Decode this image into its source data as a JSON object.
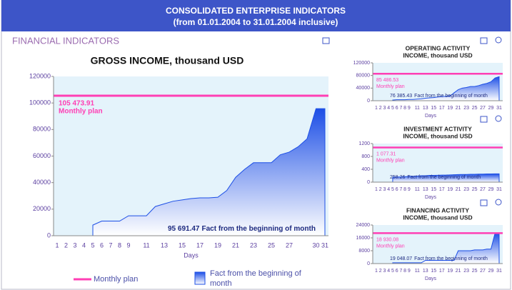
{
  "header": {
    "title": "CONSOLIDATED ENTERPRISE INDICATORS",
    "subtitle": "(from 01.01.2004 to 31.01.2004 inclusive)"
  },
  "section": "FINANCIAL INDICATORS",
  "legend": {
    "plan": "Monthly plan",
    "fact": "Fact from the beginning of month"
  },
  "chart_data": [
    {
      "type": "area",
      "title": [
        "GROSS INCOME, thousand USD"
      ],
      "xlabel": "Days",
      "categories": [
        "1",
        "2",
        "3",
        "4",
        "5",
        "6",
        "7",
        "8",
        "9",
        null,
        "11",
        null,
        "13",
        null,
        "15",
        null,
        "17",
        null,
        "19",
        null,
        "21",
        null,
        "23",
        null,
        "25",
        null,
        "27",
        null,
        null,
        "30",
        "31"
      ],
      "ylim": [
        0,
        120000
      ],
      "yticks": [
        0,
        20000,
        40000,
        60000,
        80000,
        100000,
        120000
      ],
      "grid": false,
      "plan": {
        "name": "Monthly plan",
        "value": 105473.91,
        "value_label": "105 473.91",
        "color": "#ff3fb4"
      },
      "series": [
        {
          "name": "Fact from the beginning of month",
          "color": "#1d4fe6",
          "value_label": "95 691.47",
          "values": [
            null,
            null,
            null,
            null,
            8000,
            11000,
            11000,
            11000,
            15000,
            15000,
            15000,
            22000,
            24000,
            26000,
            27000,
            28000,
            28500,
            28500,
            29000,
            34000,
            44000,
            50000,
            55000,
            55000,
            55000,
            61000,
            63000,
            67000,
            73000,
            95691.47,
            95691.47
          ]
        }
      ]
    },
    {
      "type": "area",
      "title": [
        "OPERATING ACTIVITY",
        "INCOME, thousand USD"
      ],
      "xlabel": "Days",
      "categories": [
        "1",
        "2",
        "3",
        "4",
        "5",
        "6",
        "7",
        "8",
        "9",
        null,
        "11",
        null,
        "13",
        null,
        "15",
        null,
        "17",
        null,
        "19",
        null,
        "21",
        null,
        "23",
        null,
        "25",
        null,
        "27",
        null,
        "29",
        null,
        "31"
      ],
      "ylim": [
        0,
        120000
      ],
      "yticks": [
        0,
        40000,
        80000,
        120000
      ],
      "grid": false,
      "plan": {
        "name": "Monthly plan",
        "value": 85486.53,
        "value_label": "85 486.53",
        "color": "#ff3fb4"
      },
      "series": [
        {
          "name": "Fact from the beginning of month",
          "color": "#1d4fe6",
          "value_label": "76 385.43",
          "values": [
            null,
            null,
            null,
            null,
            2000,
            3000,
            3000,
            3000,
            4000,
            4000,
            5000,
            6000,
            8000,
            9000,
            10000,
            12000,
            13000,
            14000,
            15000,
            25000,
            35000,
            40000,
            42000,
            45000,
            45000,
            48000,
            52000,
            55000,
            60000,
            72000,
            76385.43
          ]
        }
      ]
    },
    {
      "type": "area",
      "title": [
        "INVESTMENT ACTIVITY",
        "INCOME, thousand USD"
      ],
      "xlabel": "Days",
      "categories": [
        "1",
        "2",
        "3",
        "4",
        "5",
        "6",
        "7",
        "8",
        "9",
        null,
        "11",
        null,
        "13",
        null,
        "15",
        null,
        "17",
        null,
        "19",
        null,
        "21",
        null,
        "23",
        null,
        "25",
        null,
        "27",
        null,
        "29",
        null,
        "31"
      ],
      "ylim": [
        0,
        1200
      ],
      "yticks": [
        0,
        400,
        800,
        1200
      ],
      "grid": false,
      "plan": {
        "name": "Monthly plan",
        "value": 1077.31,
        "value_label": "1 077.31",
        "color": "#ff3fb4"
      },
      "series": [
        {
          "name": "Fact from the beginning of month",
          "color": "#1d4fe6",
          "value_label": "258.26",
          "values": [
            null,
            null,
            null,
            null,
            150,
            160,
            160,
            170,
            180,
            180,
            190,
            200,
            200,
            210,
            210,
            215,
            220,
            220,
            225,
            230,
            235,
            240,
            240,
            245,
            245,
            250,
            250,
            255,
            255,
            258.26,
            258.26
          ]
        }
      ]
    },
    {
      "type": "area",
      "title": [
        "FINANCING ACTIVITY",
        "INCOME, thousand USD"
      ],
      "xlabel": "Days",
      "categories": [
        "1",
        "2",
        "3",
        "4",
        "5",
        "6",
        "7",
        "8",
        "9",
        null,
        "11",
        null,
        "13",
        null,
        "15",
        null,
        "17",
        null,
        "19",
        null,
        "21",
        null,
        "23",
        null,
        "25",
        null,
        "27",
        null,
        "29",
        null,
        "31"
      ],
      "ylim": [
        0,
        24000
      ],
      "yticks": [
        0,
        8000,
        16000,
        24000
      ],
      "grid": false,
      "plan": {
        "name": "Monthly plan",
        "value": 18930.08,
        "value_label": "18 930.08",
        "color": "#ff3fb4"
      },
      "series": [
        {
          "name": "Fact from the beginning of month",
          "color": "#1d4fe6",
          "value_label": "19 048.07",
          "values": [
            null,
            null,
            null,
            null,
            500,
            500,
            500,
            500,
            500,
            500,
            500,
            500,
            2000,
            2000,
            2000,
            2000,
            2000,
            2000,
            2000,
            2000,
            8000,
            8000,
            8000,
            8000,
            8500,
            8500,
            8500,
            9000,
            9000,
            19048.07,
            19048.07
          ]
        }
      ]
    }
  ]
}
